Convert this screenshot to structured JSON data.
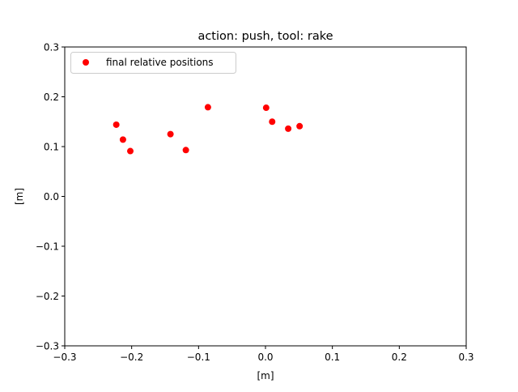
{
  "chart_data": {
    "type": "scatter",
    "title": "action: push, tool: rake",
    "xlabel": "[m]",
    "ylabel": "[m]",
    "xlim": [
      -0.3,
      0.3
    ],
    "ylim": [
      -0.3,
      0.3
    ],
    "xticks": [
      -0.3,
      -0.2,
      -0.1,
      0.0,
      0.1,
      0.2,
      0.3
    ],
    "yticks": [
      -0.3,
      -0.2,
      -0.1,
      0.0,
      0.1,
      0.2,
      0.3
    ],
    "xtick_labels": [
      "−0.3",
      "−0.2",
      "−0.1",
      "0.0",
      "0.1",
      "0.2",
      "0.3"
    ],
    "ytick_labels": [
      "−0.3",
      "−0.2",
      "−0.1",
      "0.0",
      "0.1",
      "0.2",
      "0.3"
    ],
    "grid": false,
    "legend_position": "top-left",
    "series": [
      {
        "name": "final relative positions",
        "color": "#ff0000",
        "marker": "circle",
        "points": [
          {
            "x": -0.223,
            "y": 0.144
          },
          {
            "x": -0.213,
            "y": 0.114
          },
          {
            "x": -0.202,
            "y": 0.091
          },
          {
            "x": -0.142,
            "y": 0.125
          },
          {
            "x": -0.119,
            "y": 0.093
          },
          {
            "x": -0.086,
            "y": 0.179
          },
          {
            "x": 0.001,
            "y": 0.178
          },
          {
            "x": 0.01,
            "y": 0.15
          },
          {
            "x": 0.034,
            "y": 0.136
          },
          {
            "x": 0.051,
            "y": 0.141
          }
        ]
      }
    ]
  }
}
